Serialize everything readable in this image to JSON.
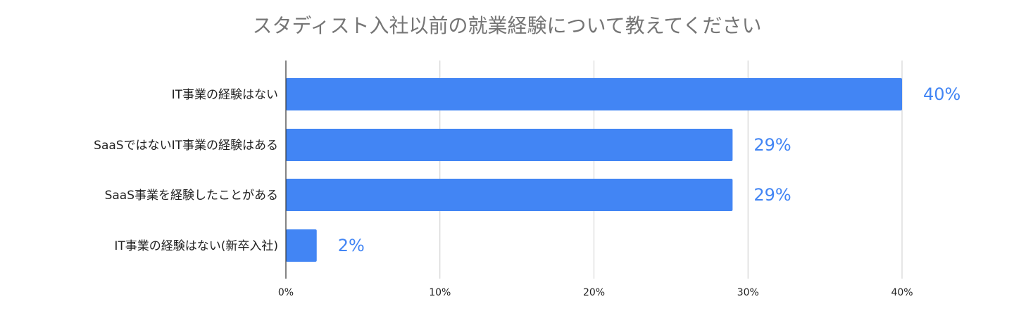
{
  "chart_data": {
    "type": "bar",
    "orientation": "horizontal",
    "title": "スタディスト入社以前の就業経験について教えてください",
    "categories": [
      "IT事業の経験はない",
      "SaaSではないIT事業の経験はある",
      "SaaS事業を経験したことがある",
      "IT事業の経験はない(新卒入社)"
    ],
    "values": [
      40,
      29,
      29,
      2
    ],
    "data_labels": [
      "40%",
      "29%",
      "29%",
      "2%"
    ],
    "xlim": [
      0,
      40
    ],
    "xticks": [
      0,
      10,
      20,
      30,
      40
    ],
    "xtick_labels": [
      "0%",
      "10%",
      "20%",
      "30%",
      "40%"
    ],
    "xlabel": "",
    "ylabel": "",
    "grid": true,
    "legend": "none",
    "colors": {
      "bar": "#4285f4",
      "data_label": "#4285f4",
      "title": "#757575",
      "grid": "#cccccc"
    }
  }
}
